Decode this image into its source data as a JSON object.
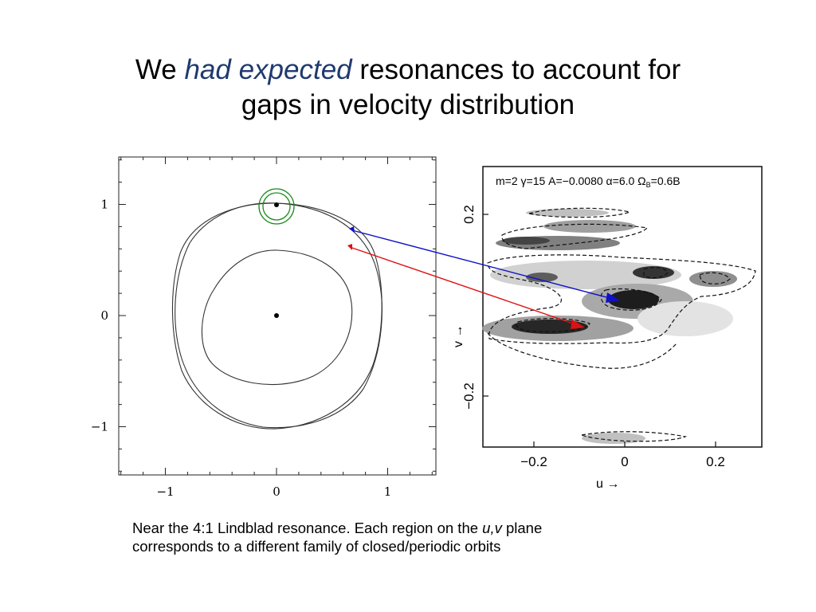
{
  "slide": {
    "title_pre": "We ",
    "title_em": "had expected",
    "title_post_line1": " resonances to account for",
    "title_line2": "gaps in velocity distribution",
    "caption_part1": "Near the 4:1 Lindblad resonance. Each region on the ",
    "caption_em": "u,v",
    "caption_part2": " plane",
    "caption_line2": "corresponds to a different family of closed/periodic orbits"
  },
  "orbit_plot": {
    "x_ticks": [
      {
        "value": -1,
        "label": "−1"
      },
      {
        "value": 0,
        "label": "0"
      },
      {
        "value": 1,
        "label": "1"
      }
    ],
    "y_ticks": [
      {
        "value": 1,
        "label": "1"
      },
      {
        "value": 0,
        "label": "0"
      },
      {
        "value": -1,
        "label": "−1"
      }
    ],
    "xlim": [
      -1.42,
      1.42
    ],
    "ylim": [
      -1.42,
      1.42
    ]
  },
  "velocity_plot": {
    "header": "m=2  γ=15  A=−0.0080  α=6.0  Ω",
    "header_sub": "B",
    "header_tail": "=0.6B",
    "x_ticks": [
      {
        "value": -0.2,
        "label": "−0.2"
      },
      {
        "value": 0,
        "label": "0"
      },
      {
        "value": 0.2,
        "label": "0.2"
      }
    ],
    "y_ticks": [
      {
        "value": 0.2,
        "label": "0.2"
      },
      {
        "value": -0.2,
        "label": "−0.2"
      }
    ],
    "x_axis_label": "u →",
    "y_axis_label": "v →"
  },
  "colors": {
    "title_emphasis": "#1f3a6e",
    "highlight_circle": "#1a8a1a",
    "arrow_blue": "#1010c8",
    "arrow_red": "#e01010"
  }
}
